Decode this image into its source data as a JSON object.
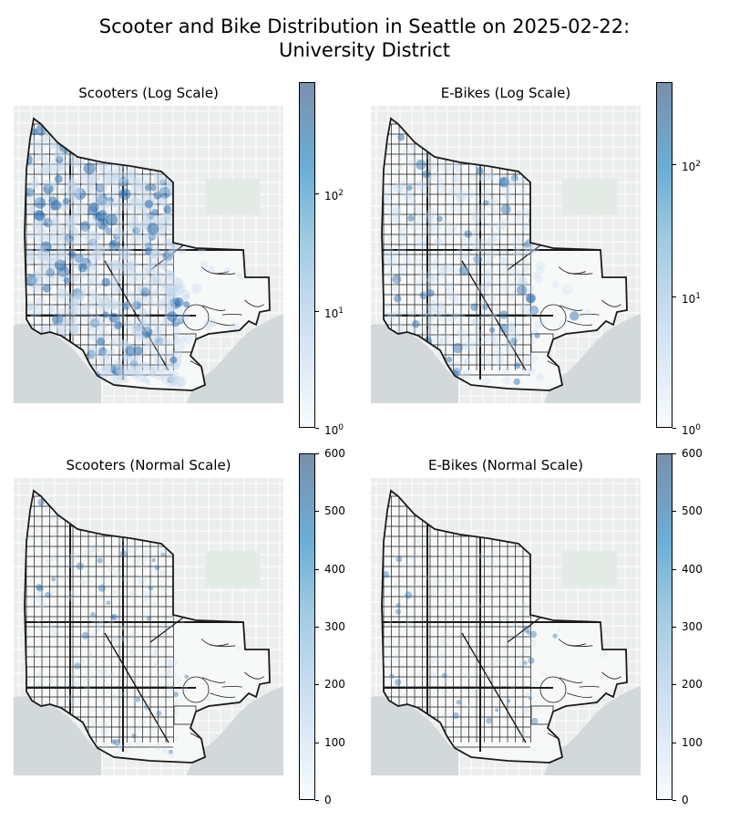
{
  "title": {
    "line1": "Scooter and Bike Distribution in Seattle on 2025-02-22:",
    "line2": "University District"
  },
  "panels": [
    {
      "title": "Scooters (Log Scale)",
      "colorbar": {
        "scale": "log",
        "min": 1,
        "max": 900,
        "ticks": [
          {
            "base": "10",
            "exp": "0",
            "value": 1
          },
          {
            "base": "10",
            "exp": "1",
            "value": 10
          },
          {
            "base": "10",
            "exp": "2",
            "value": 100
          }
        ]
      }
    },
    {
      "title": "E-Bikes (Log Scale)",
      "colorbar": {
        "scale": "log",
        "min": 1,
        "max": 420,
        "ticks": [
          {
            "base": "10",
            "exp": "0",
            "value": 1
          },
          {
            "base": "10",
            "exp": "1",
            "value": 10
          },
          {
            "base": "10",
            "exp": "2",
            "value": 100
          }
        ]
      }
    },
    {
      "title": "Scooters (Normal Scale)",
      "colorbar": {
        "scale": "linear",
        "min": 0,
        "max": 600,
        "ticks": [
          "0",
          "100",
          "200",
          "300",
          "400",
          "500",
          "600"
        ]
      }
    },
    {
      "title": "E-Bikes (Normal Scale)",
      "colorbar": {
        "scale": "linear",
        "min": 0,
        "max": 600,
        "ticks": [
          "0",
          "100",
          "200",
          "300",
          "400",
          "500",
          "600"
        ]
      }
    }
  ],
  "colors": {
    "basemap": "#eceeee",
    "water": "#d3d8da",
    "road": "#1a1a1a",
    "density_low": "#c6dbef",
    "density_high": "#2e6fae"
  }
}
